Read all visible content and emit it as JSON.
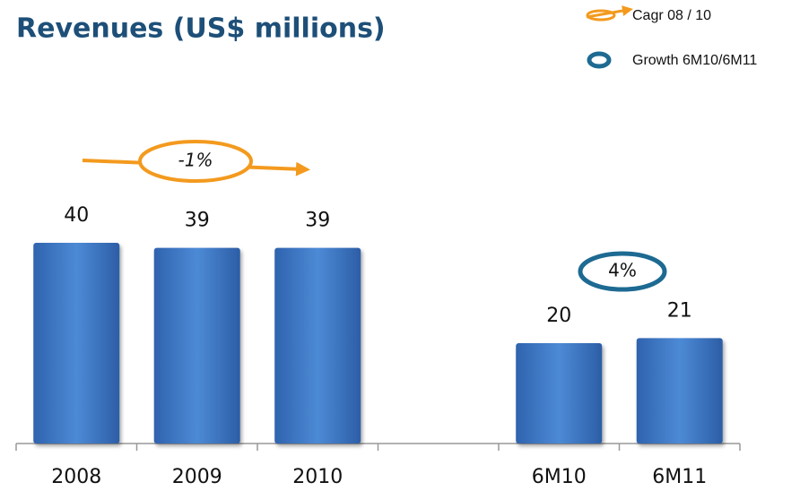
{
  "chart_data": {
    "type": "bar",
    "title": "Revenues (US$ millions)",
    "categories": [
      "2008",
      "2009",
      "2010",
      null,
      "6M10",
      "6M11"
    ],
    "values": [
      40,
      39,
      39,
      null,
      20,
      21
    ],
    "color": "#3f7bc8",
    "legend": [
      {
        "text": "Cagr 08 / 10",
        "color": "#f39a1e"
      },
      {
        "text": "Growth 6M10/6M11",
        "color": "#1d6a92"
      }
    ],
    "annotations": [
      {
        "text": "-1%",
        "color": "#f39a1e"
      },
      {
        "text": "4%",
        "color": "#1d6a92"
      }
    ]
  }
}
